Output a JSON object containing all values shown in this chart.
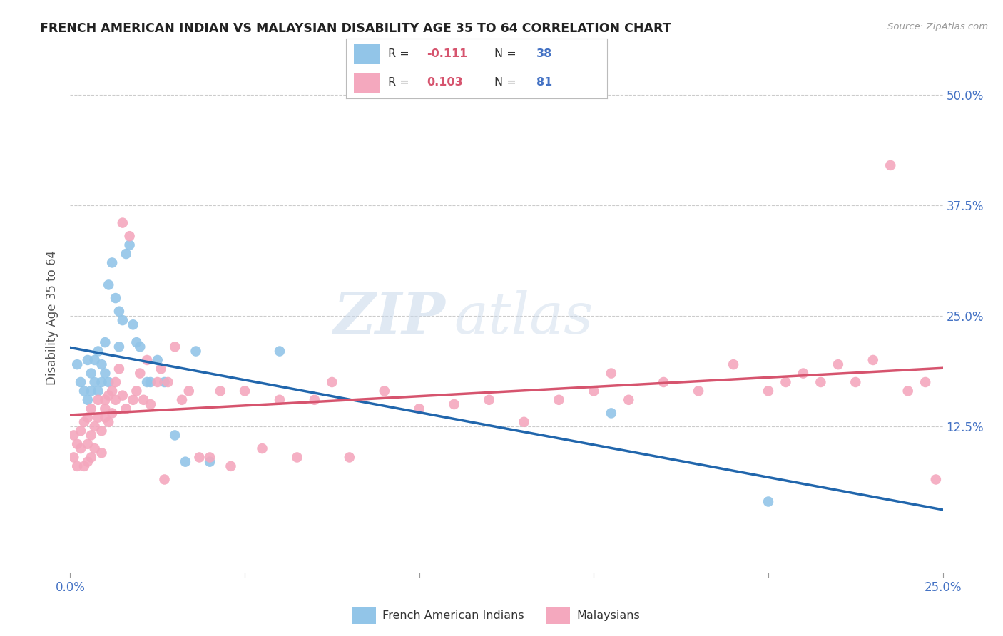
{
  "title": "FRENCH AMERICAN INDIAN VS MALAYSIAN DISABILITY AGE 35 TO 64 CORRELATION CHART",
  "source": "Source: ZipAtlas.com",
  "ylabel": "Disability Age 35 to 64",
  "yticks": [
    "12.5%",
    "25.0%",
    "37.5%",
    "50.0%"
  ],
  "ytick_values": [
    0.125,
    0.25,
    0.375,
    0.5
  ],
  "xlim": [
    0.0,
    0.25
  ],
  "ylim": [
    -0.04,
    0.535
  ],
  "legend_label1": "French American Indians",
  "legend_label2": "Malaysians",
  "blue_color": "#92c5e8",
  "pink_color": "#f4a8be",
  "blue_line_color": "#2166ac",
  "pink_line_color": "#d6546e",
  "watermark_zip": "ZIP",
  "watermark_atlas": "atlas",
  "blue_scatter_x": [
    0.002,
    0.003,
    0.004,
    0.005,
    0.005,
    0.006,
    0.006,
    0.007,
    0.007,
    0.008,
    0.008,
    0.009,
    0.009,
    0.01,
    0.01,
    0.011,
    0.011,
    0.012,
    0.013,
    0.014,
    0.014,
    0.015,
    0.016,
    0.017,
    0.018,
    0.019,
    0.02,
    0.022,
    0.023,
    0.025,
    0.027,
    0.03,
    0.033,
    0.036,
    0.04,
    0.06,
    0.155,
    0.2
  ],
  "blue_scatter_y": [
    0.195,
    0.175,
    0.165,
    0.2,
    0.155,
    0.185,
    0.165,
    0.175,
    0.2,
    0.165,
    0.21,
    0.175,
    0.195,
    0.185,
    0.22,
    0.175,
    0.285,
    0.31,
    0.27,
    0.215,
    0.255,
    0.245,
    0.32,
    0.33,
    0.24,
    0.22,
    0.215,
    0.175,
    0.175,
    0.2,
    0.175,
    0.115,
    0.085,
    0.21,
    0.085,
    0.21,
    0.14,
    0.04
  ],
  "pink_scatter_x": [
    0.001,
    0.001,
    0.002,
    0.002,
    0.003,
    0.003,
    0.004,
    0.004,
    0.005,
    0.005,
    0.005,
    0.006,
    0.006,
    0.006,
    0.007,
    0.007,
    0.008,
    0.008,
    0.009,
    0.009,
    0.01,
    0.01,
    0.01,
    0.011,
    0.011,
    0.012,
    0.012,
    0.013,
    0.013,
    0.014,
    0.015,
    0.015,
    0.016,
    0.017,
    0.018,
    0.019,
    0.02,
    0.021,
    0.022,
    0.023,
    0.025,
    0.026,
    0.027,
    0.028,
    0.03,
    0.032,
    0.034,
    0.037,
    0.04,
    0.043,
    0.046,
    0.05,
    0.055,
    0.06,
    0.065,
    0.07,
    0.075,
    0.08,
    0.09,
    0.1,
    0.11,
    0.12,
    0.13,
    0.14,
    0.15,
    0.155,
    0.16,
    0.17,
    0.18,
    0.19,
    0.2,
    0.205,
    0.21,
    0.215,
    0.22,
    0.225,
    0.23,
    0.235,
    0.24,
    0.245,
    0.248
  ],
  "pink_scatter_y": [
    0.115,
    0.09,
    0.105,
    0.08,
    0.12,
    0.1,
    0.13,
    0.08,
    0.105,
    0.135,
    0.085,
    0.115,
    0.145,
    0.09,
    0.125,
    0.1,
    0.135,
    0.155,
    0.12,
    0.095,
    0.145,
    0.135,
    0.155,
    0.16,
    0.13,
    0.165,
    0.14,
    0.155,
    0.175,
    0.19,
    0.16,
    0.355,
    0.145,
    0.34,
    0.155,
    0.165,
    0.185,
    0.155,
    0.2,
    0.15,
    0.175,
    0.19,
    0.065,
    0.175,
    0.215,
    0.155,
    0.165,
    0.09,
    0.09,
    0.165,
    0.08,
    0.165,
    0.1,
    0.155,
    0.09,
    0.155,
    0.175,
    0.09,
    0.165,
    0.145,
    0.15,
    0.155,
    0.13,
    0.155,
    0.165,
    0.185,
    0.155,
    0.175,
    0.165,
    0.195,
    0.165,
    0.175,
    0.185,
    0.175,
    0.195,
    0.175,
    0.2,
    0.42,
    0.165,
    0.175,
    0.065
  ]
}
